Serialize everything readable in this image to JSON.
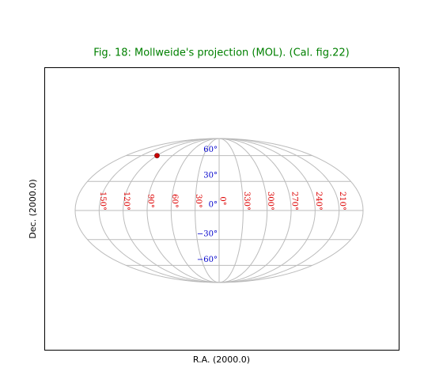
{
  "chart_data": {
    "type": "mollweide",
    "title": "Fig. 18: Mollweide's projection (MOL). (Cal. fig.22)",
    "xlabel": "R.A. (2000.0)",
    "ylabel": "Dec. (2000.0)",
    "xticks": [
      {
        "value": 150,
        "label": "150°"
      },
      {
        "value": 120,
        "label": "120°"
      },
      {
        "value": 90,
        "label": "90°"
      },
      {
        "value": 60,
        "label": "60°"
      },
      {
        "value": 30,
        "label": "30°"
      },
      {
        "value": 0,
        "label": "0°"
      },
      {
        "value": 330,
        "label": "330°"
      },
      {
        "value": 300,
        "label": "300°"
      },
      {
        "value": 270,
        "label": "270°"
      },
      {
        "value": 240,
        "label": "240°"
      },
      {
        "value": 210,
        "label": "210°"
      }
    ],
    "yticks": [
      {
        "value": 60,
        "label": "60°"
      },
      {
        "value": 30,
        "label": "30°"
      },
      {
        "value": 0,
        "label": "0°"
      },
      {
        "value": -30,
        "label": "−30°"
      },
      {
        "value": -60,
        "label": "−60°"
      }
    ],
    "grid": true,
    "grid_color": "#bbbbbb",
    "xtick_color": "#dd0000",
    "ytick_color": "#0000cc",
    "title_color": "#008000",
    "points": {
      "x": [
        120
      ],
      "y": [
        60
      ],
      "color": "#cc0000"
    }
  }
}
